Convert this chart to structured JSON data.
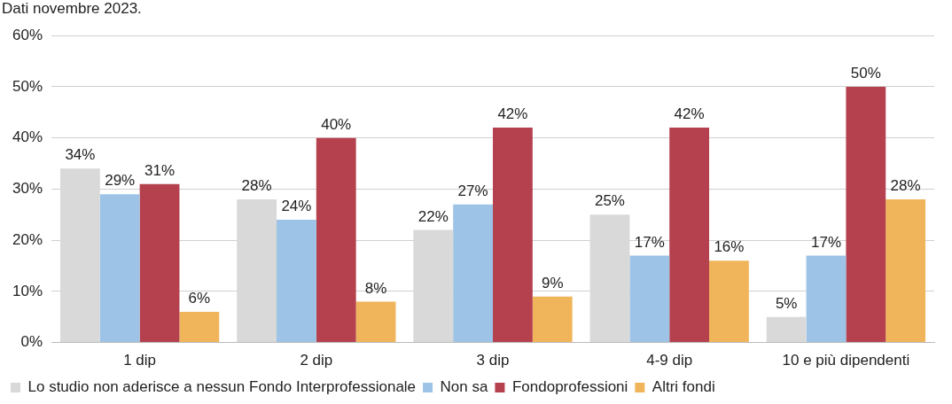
{
  "chart_data": {
    "type": "bar",
    "subtitle": "Dati novembre 2023.",
    "categories": [
      "1 dip",
      "2 dip",
      "3 dip",
      "4-9 dip",
      "10 e più dipendenti"
    ],
    "series": [
      {
        "name": "Lo studio non aderisce a nessun Fondo Interprofessionale",
        "color": "#d9d9d9",
        "values": [
          34,
          28,
          22,
          25,
          5
        ],
        "value_labels": [
          "34%",
          "28%",
          "22%",
          "25%",
          "5%"
        ]
      },
      {
        "name": "Non sa",
        "color": "#9dc3e6",
        "values": [
          29,
          24,
          27,
          17,
          17
        ],
        "value_labels": [
          "29%",
          "24%",
          "27%",
          "17%",
          "17%"
        ]
      },
      {
        "name": "Fondoprofessioni",
        "color": "#b5414f",
        "values": [
          31,
          40,
          42,
          42,
          50
        ],
        "value_labels": [
          "31%",
          "40%",
          "42%",
          "42%",
          "50%"
        ]
      },
      {
        "name": "Altri fondi",
        "color": "#f0b55a",
        "values": [
          6,
          8,
          9,
          16,
          28
        ],
        "value_labels": [
          "6%",
          "8%",
          "9%",
          "16%",
          "28%"
        ]
      }
    ],
    "ylim": [
      0,
      60
    ],
    "yticks": [
      {
        "value": 0,
        "label": "0%"
      },
      {
        "value": 10,
        "label": "10%"
      },
      {
        "value": 20,
        "label": "20%"
      },
      {
        "value": 30,
        "label": "30%"
      },
      {
        "value": 40,
        "label": "40%"
      },
      {
        "value": 50,
        "label": "50%"
      },
      {
        "value": 60,
        "label": "60%"
      }
    ],
    "grid": "y",
    "legend": "bottom"
  }
}
